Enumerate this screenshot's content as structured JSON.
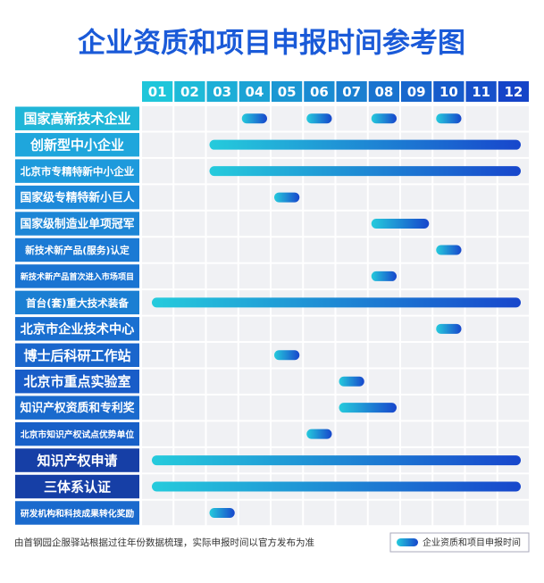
{
  "chart_data": {
    "type": "gantt",
    "title": "企业资质和项目申报时间参考图",
    "categories": [
      "01",
      "02",
      "03",
      "04",
      "05",
      "06",
      "07",
      "08",
      "09",
      "10",
      "11",
      "12"
    ],
    "tasks": [
      {
        "label": "国家高新技术企业",
        "segments": [
          {
            "start": 4,
            "end": 4
          },
          {
            "start": 6,
            "end": 6
          },
          {
            "start": 8,
            "end": 8
          },
          {
            "start": 10,
            "end": 10
          }
        ]
      },
      {
        "label": "创新型中小企业",
        "segments": [
          {
            "start": 3,
            "end": 12
          }
        ]
      },
      {
        "label": "北京市专精特新中小企业",
        "segments": [
          {
            "start": 3,
            "end": 12
          }
        ]
      },
      {
        "label": "国家级专精特新小巨人",
        "segments": [
          {
            "start": 5,
            "end": 5
          }
        ]
      },
      {
        "label": "国家级制造业单项冠军",
        "segments": [
          {
            "start": 8,
            "end": 9
          }
        ]
      },
      {
        "label": "新技术新产品(服务)认定",
        "segments": [
          {
            "start": 10,
            "end": 10
          }
        ]
      },
      {
        "label": "新技术新产品首次进入市场项目",
        "segments": [
          {
            "start": 8,
            "end": 8
          }
        ]
      },
      {
        "label": "首台(套)重大技术装备",
        "segments": [
          {
            "start": 1,
            "end": 12
          }
        ]
      },
      {
        "label": "北京市企业技术中心",
        "segments": [
          {
            "start": 10,
            "end": 10
          }
        ]
      },
      {
        "label": "博士后科研工作站",
        "segments": [
          {
            "start": 5,
            "end": 5
          }
        ]
      },
      {
        "label": "北京市重点实验室",
        "segments": [
          {
            "start": 7,
            "end": 7
          }
        ]
      },
      {
        "label": "知识产权资质和专利奖",
        "segments": [
          {
            "start": 7,
            "end": 8
          }
        ]
      },
      {
        "label": "北京市知识产权试点优势单位",
        "segments": [
          {
            "start": 6,
            "end": 6
          }
        ]
      },
      {
        "label": "知识产权申请",
        "segments": [
          {
            "start": 1,
            "end": 12
          }
        ]
      },
      {
        "label": "三体系认证",
        "segments": [
          {
            "start": 1,
            "end": 12
          }
        ]
      },
      {
        "label": "研发机构和科技成果转化奖励",
        "segments": [
          {
            "start": 3,
            "end": 3
          }
        ]
      }
    ],
    "footnote": "由首钢园企服驿站根据过往年份数据梳理，实际申报时间以官方发布为准",
    "legend": "企业资质和项目申报时间"
  }
}
